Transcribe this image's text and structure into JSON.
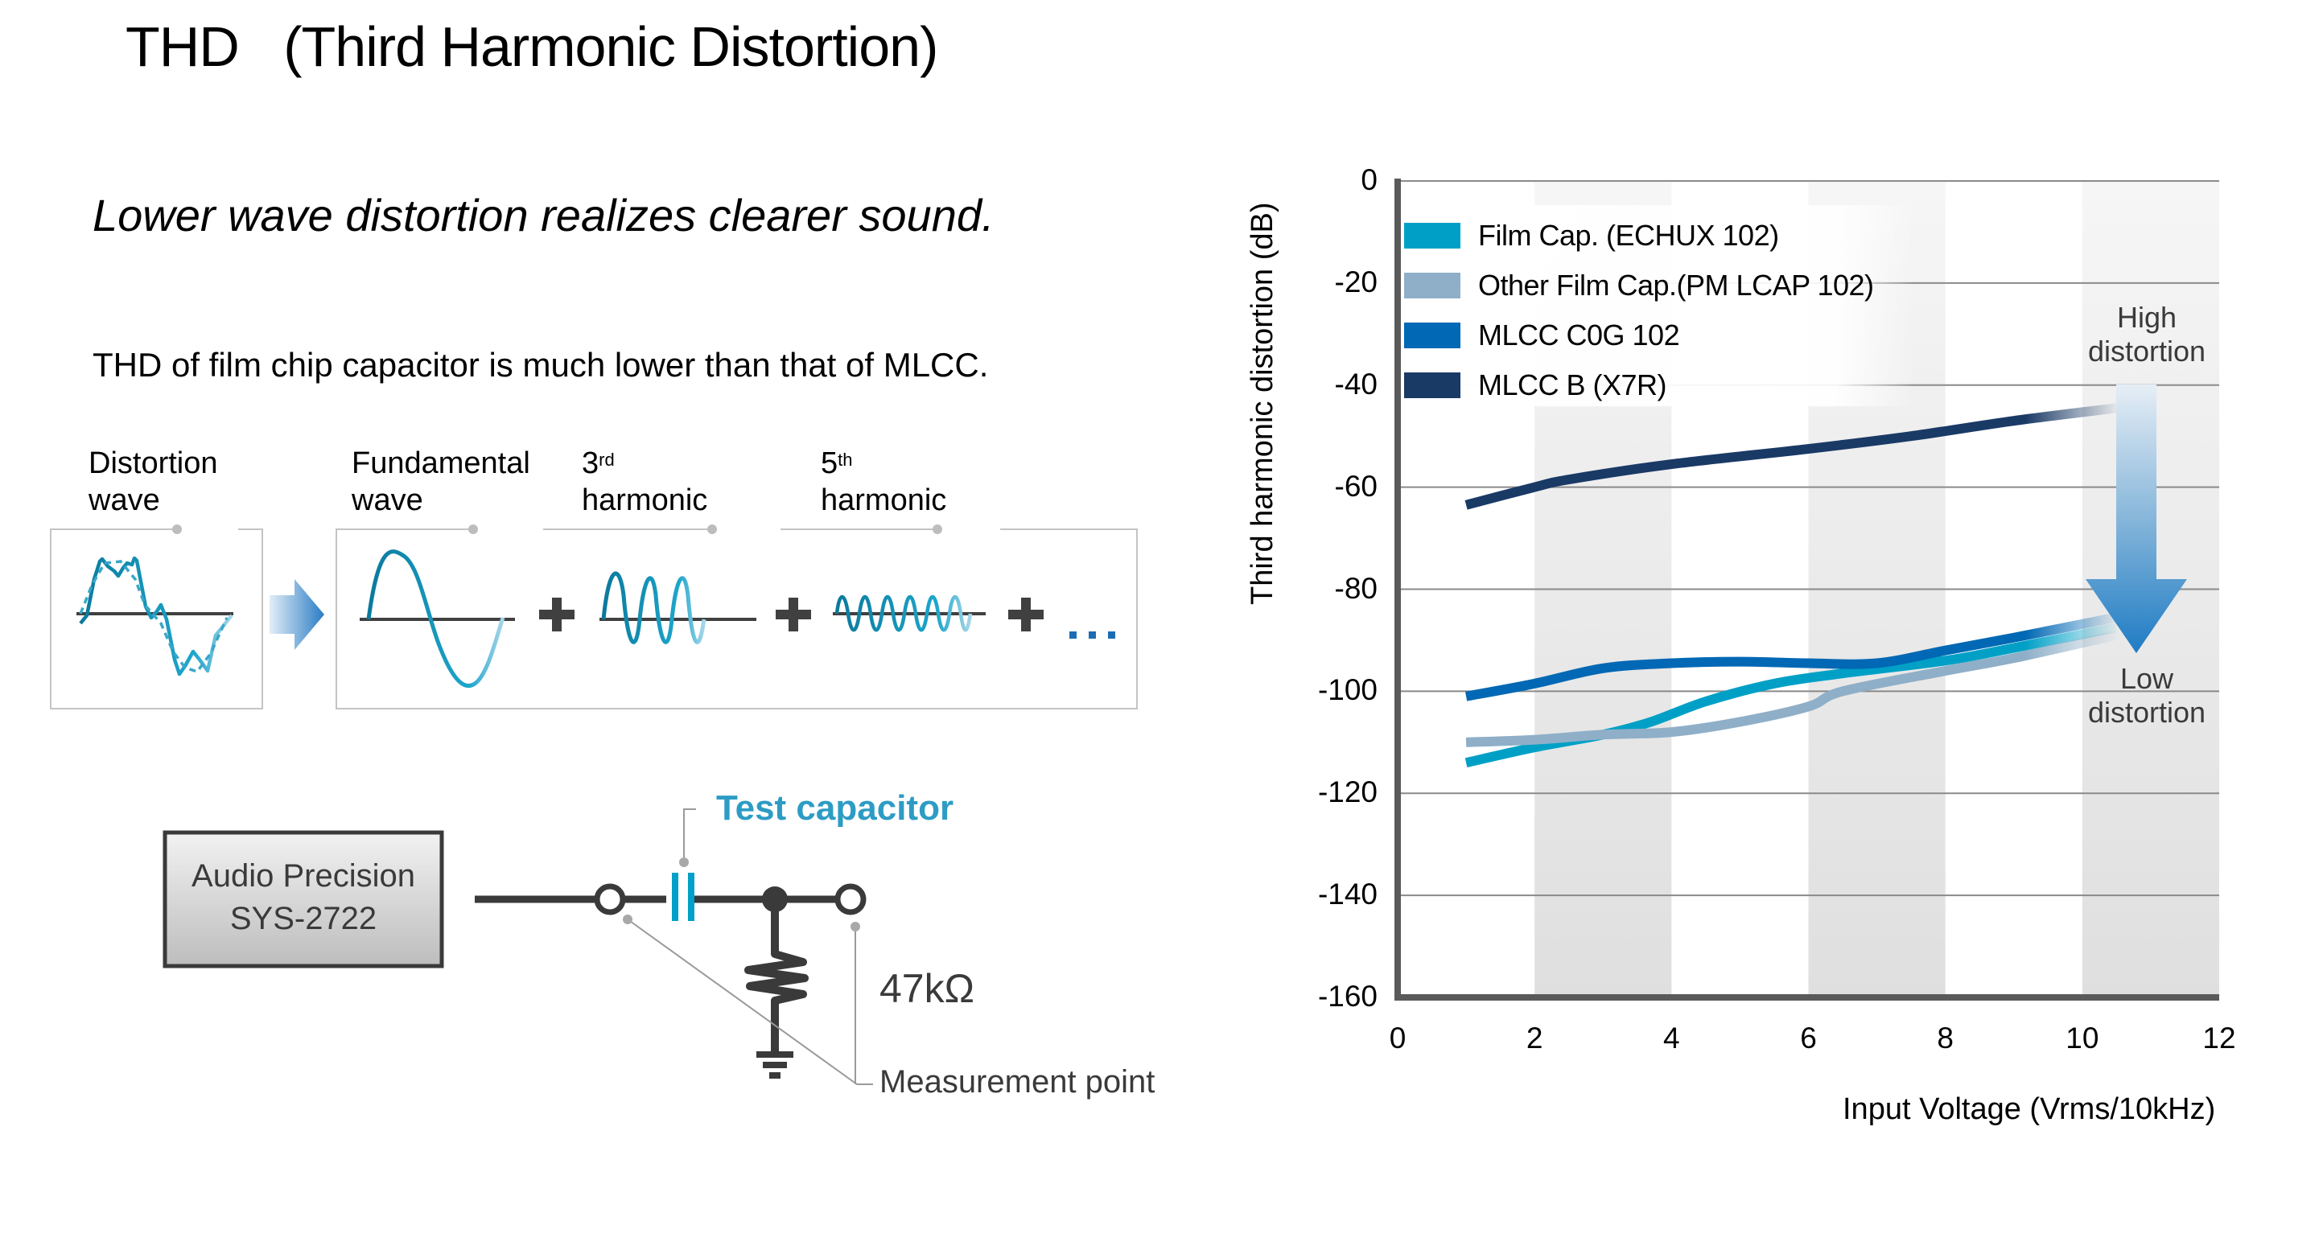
{
  "header": {
    "title": "THD   (Third Harmonic Distortion)",
    "tagline": "Lower wave distortion realizes clearer sound.",
    "subtitle": "THD of film chip capacitor is much lower than that of MLCC."
  },
  "wave_diagram": {
    "distortion_label_line1": "Distortion",
    "distortion_label_line2": "wave",
    "fundamental_label_line1": "Fundamental",
    "fundamental_label_line2": "wave",
    "third_label_num": "3",
    "third_label_sup": "rd",
    "third_label_line2": "harmonic",
    "fifth_label_num": "5",
    "fifth_label_sup": "th",
    "fifth_label_line2": "harmonic",
    "plus_symbol": "+",
    "ellipsis": "...",
    "colors": {
      "wave": "#0e86a8",
      "wave_light": "#9fd0e3",
      "axis": "#404040",
      "arrow": "#2a7cc4",
      "ellipsis": "#1a6db5"
    }
  },
  "circuit": {
    "instrument_line1": "Audio Precision",
    "instrument_line2": "SYS-2722",
    "test_capacitor_label": "Test capacitor",
    "resistor_label": "47kΩ",
    "measurement_point_label": "Measurement point",
    "colors": {
      "capacitor": "#00a0c8",
      "test_label": "#2d9cc4",
      "wire": "#3a3a3a"
    }
  },
  "chart_data": {
    "type": "line",
    "title": "",
    "xlabel": "Input Voltage (Vrms/10kHz)",
    "ylabel": "Third harmonic distortion (dB)",
    "xlim": [
      0,
      12
    ],
    "ylim": [
      -160,
      0
    ],
    "x_ticks": [
      "0",
      "2",
      "4",
      "6",
      "8",
      "10",
      "12"
    ],
    "y_ticks": [
      "0",
      "-20",
      "-40",
      "-60",
      "-80",
      "-100",
      "-120",
      "-140",
      "-160"
    ],
    "grid": "horizontal lines at each 20 dB; alternating shaded vertical bands 2-4, 6-8, 10-12",
    "legend_position": "upper-left inside",
    "series": [
      {
        "name": "Film Cap. (ECHUX 102)",
        "color": "#00a0c6",
        "x": [
          1,
          2,
          3,
          3.7,
          4.5,
          5.5,
          6.5,
          8,
          9,
          10.5
        ],
        "values": [
          -114,
          -111,
          -108.5,
          -106,
          -102,
          -98.5,
          -96.5,
          -94,
          -91.5,
          -87.5
        ]
      },
      {
        "name": "Other Film Cap.(PM LCAP 102)",
        "color": "#8fafc8",
        "x": [
          1,
          2,
          3,
          4,
          5,
          6,
          6.5,
          8,
          9,
          10.5
        ],
        "values": [
          -110,
          -109.5,
          -108.5,
          -108,
          -106,
          -103,
          -100,
          -96,
          -93.5,
          -89
        ]
      },
      {
        "name": "MLCC C0G 102",
        "color": "#0068b4",
        "x": [
          1,
          2,
          3,
          4,
          5,
          6,
          7,
          8,
          9,
          10.5
        ],
        "values": [
          -101,
          -98.5,
          -95.5,
          -94.5,
          -94.2,
          -94.5,
          -94.5,
          -92,
          -89.5,
          -85.5
        ]
      },
      {
        "name": "MLCC B (X7R)",
        "color": "#1a3a66",
        "x": [
          1,
          2,
          2.5,
          4,
          6,
          7.5,
          9,
          10.5
        ],
        "values": [
          -63.5,
          -60,
          -58.5,
          -55.5,
          -52.5,
          -50,
          -47,
          -44.5
        ]
      }
    ],
    "annotations": [
      {
        "text_line1": "High",
        "text_line2": "distortion",
        "position": "top of arrow"
      },
      {
        "text_line1": "Low",
        "text_line2": "distortion",
        "position": "bottom of arrow"
      }
    ]
  }
}
